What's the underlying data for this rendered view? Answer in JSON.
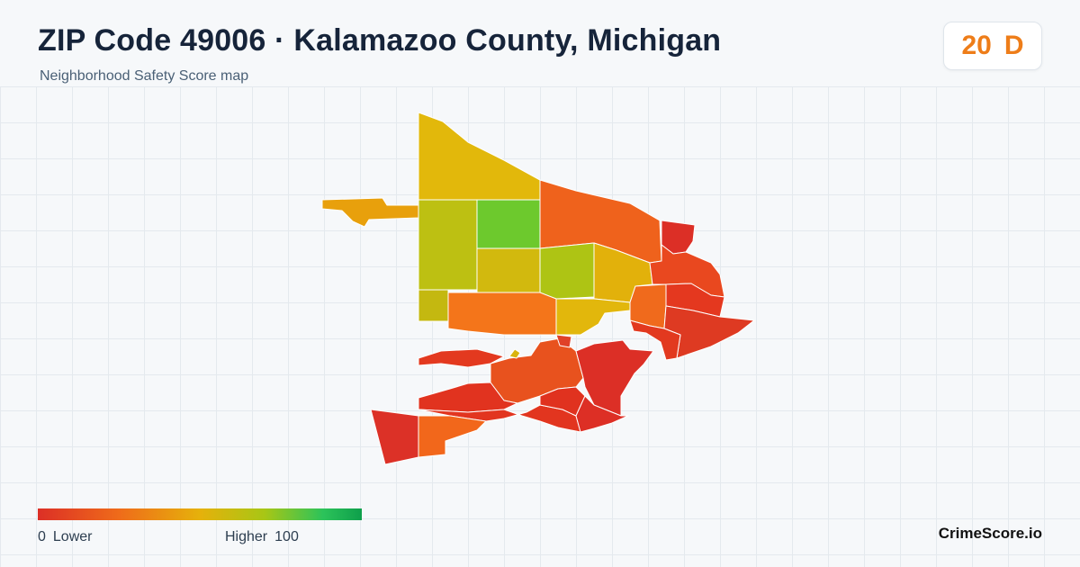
{
  "header": {
    "title": "ZIP Code 49006 · Kalamazoo County, Michigan",
    "subtitle": "Neighborhood Safety Score map"
  },
  "score": {
    "value": "20",
    "grade": "D",
    "color": "#ee7d19"
  },
  "legend": {
    "min_value": "0",
    "min_label": "Lower",
    "max_label": "Higher",
    "max_value": "100",
    "colors": [
      "#dc2f26",
      "#ef6b1a",
      "#e6b10b",
      "#a8c615",
      "#2cc35a",
      "#0e9f4b"
    ]
  },
  "brand": "CrimeScore.io",
  "map": {
    "palette": {
      "red": "#dc2f26",
      "red_orange": "#e9481f",
      "orange": "#f0731a",
      "amber": "#e8a00c",
      "yellow": "#e2b80b",
      "olive": "#bdc012",
      "green": "#6dc92d"
    }
  }
}
